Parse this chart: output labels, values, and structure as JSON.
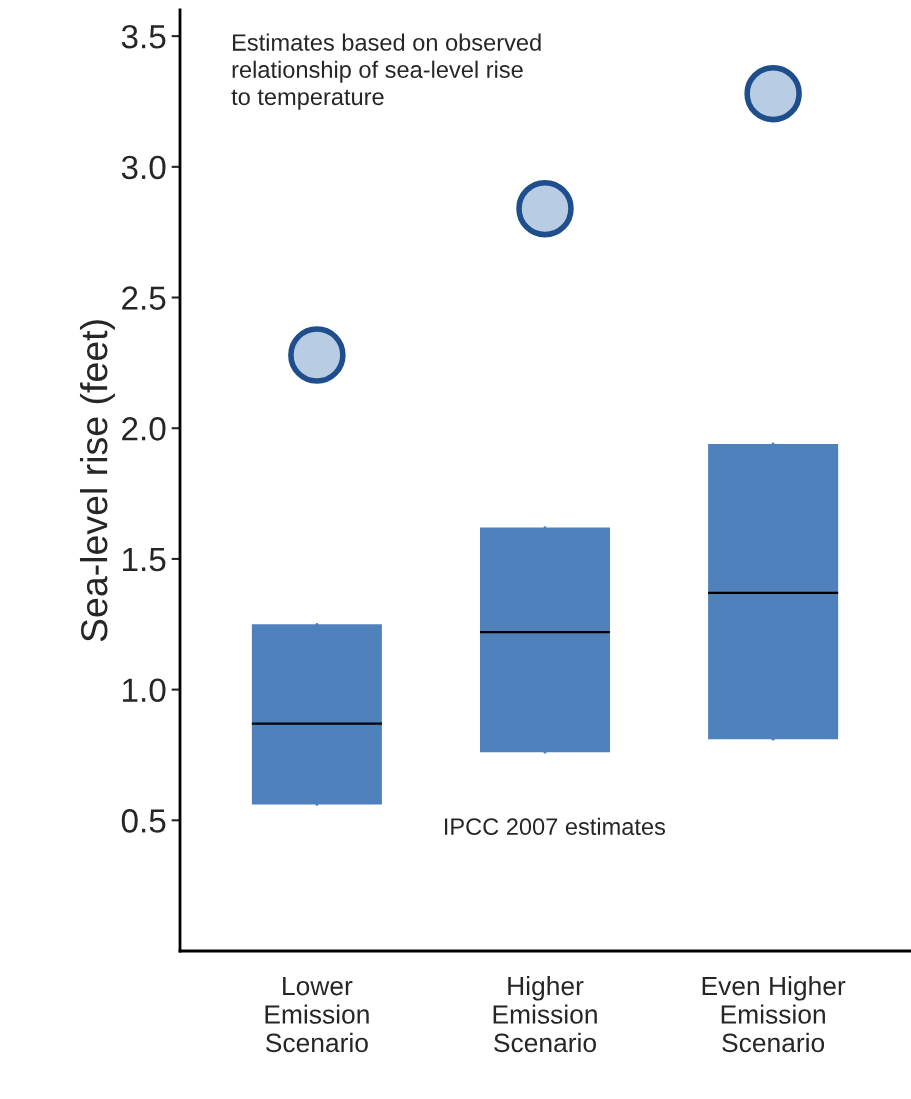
{
  "chart_data": {
    "type": "box",
    "ylabel": "Sea-level rise (feet)",
    "categories": [
      "Lower\nEmission\nScenario",
      "Higher\nEmission\nScenario",
      "Even Higher\nEmission\nScenario"
    ],
    "series": [
      {
        "color": "#4f81bd",
        "boxes": [
          {
            "low": 0.56,
            "q1": 0.56,
            "median": 0.87,
            "q3": 1.25,
            "high": 1.25
          },
          {
            "low": 0.76,
            "q1": 0.76,
            "median": 1.22,
            "q3": 1.62,
            "high": 1.62
          },
          {
            "low": 0.81,
            "q1": 0.81,
            "median": 1.37,
            "q3": 1.94,
            "high": 1.94
          }
        ]
      },
      {
        "type": "scatter",
        "color": "#b8cce4",
        "marker": "circle",
        "x": [
          "Lower\nEmission\nScenario",
          "Higher\nEmission\nScenario",
          "Even Higher\nEmission\nScenario"
        ],
        "values": [
          2.28,
          2.84,
          3.28
        ]
      }
    ],
    "ylim": [
      0,
      3.6
    ],
    "yticks": [
      0.5,
      {
        "value": 1,
        "label": "1.0"
      },
      1.5,
      {
        "value": 2,
        "label": "2.0"
      },
      2.5,
      {
        "value": 3,
        "label": "3.0"
      },
      3.5
    ],
    "annotations": [
      "Estimates based on observed\nrelationship of sea-level rise\nto temperature",
      "IPCC 2007 estimates"
    ],
    "grid": false,
    "legend": false
  }
}
